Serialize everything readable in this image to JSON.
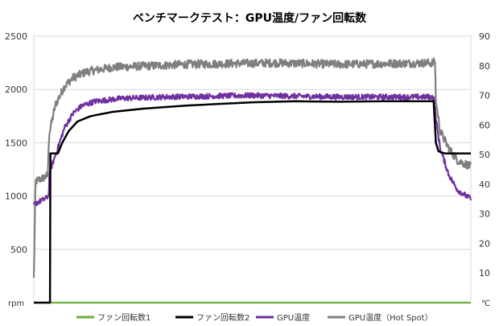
{
  "chart_data": {
    "type": "line",
    "title": "ベンチマークテスト：GPU温度/ファン回転数",
    "y_left_unit": "rpm",
    "y_right_unit": "℃",
    "y_left_ticks": [
      0,
      500,
      1000,
      1500,
      2000,
      2500
    ],
    "y_left_tick_labels": [
      "",
      "500",
      "1000",
      "1500",
      "2000",
      "2500"
    ],
    "y_right_ticks": [
      0,
      10,
      20,
      30,
      40,
      50,
      60,
      70,
      80,
      90
    ],
    "y_right_tick_labels": [
      "",
      "10",
      "20",
      "30",
      "40",
      "50",
      "60",
      "70",
      "80",
      "90"
    ],
    "ylim_left": [
      0,
      2500
    ],
    "ylim_right": [
      0,
      90
    ],
    "x_range": [
      0,
      100
    ],
    "grid": true,
    "legend_position": "bottom",
    "series": [
      {
        "name": "ファン回転数1",
        "axis": "left",
        "color": "#6aaf3b",
        "noise": 0,
        "points": [
          [
            0,
            0
          ],
          [
            100,
            0
          ]
        ]
      },
      {
        "name": "ファン回転数2",
        "axis": "left",
        "color": "#000000",
        "noise": 0,
        "points": [
          [
            0,
            0
          ],
          [
            3.7,
            0
          ],
          [
            3.8,
            1400
          ],
          [
            5.5,
            1400
          ],
          [
            6.5,
            1500
          ],
          [
            8,
            1610
          ],
          [
            10,
            1700
          ],
          [
            13,
            1750
          ],
          [
            18,
            1790
          ],
          [
            25,
            1820
          ],
          [
            35,
            1850
          ],
          [
            50,
            1880
          ],
          [
            60,
            1890
          ],
          [
            70,
            1885
          ],
          [
            80,
            1890
          ],
          [
            91.5,
            1890
          ],
          [
            92,
            1500
          ],
          [
            92.6,
            1420
          ],
          [
            94,
            1400
          ],
          [
            100,
            1400
          ]
        ]
      },
      {
        "name": "GPU温度",
        "axis": "right",
        "color": "#7030a0",
        "noise": 0.45,
        "points": [
          [
            0,
            33
          ],
          [
            1,
            34
          ],
          [
            2.5,
            35
          ],
          [
            3.4,
            36
          ],
          [
            3.6,
            44
          ],
          [
            5,
            50
          ],
          [
            7,
            59
          ],
          [
            9,
            64
          ],
          [
            11,
            66.5
          ],
          [
            14,
            68
          ],
          [
            20,
            69
          ],
          [
            30,
            69.5
          ],
          [
            50,
            70
          ],
          [
            70,
            69.5
          ],
          [
            91.5,
            69.5
          ],
          [
            92,
            62
          ],
          [
            93,
            52
          ],
          [
            95,
            43
          ],
          [
            97,
            38
          ],
          [
            100,
            35
          ]
        ]
      },
      {
        "name": "GPU温度（Hot Spot）",
        "axis": "right",
        "color": "#7f7f7f",
        "noise": 0.7,
        "points": [
          [
            0,
            8
          ],
          [
            0.4,
            41
          ],
          [
            2,
            42
          ],
          [
            3.2,
            43
          ],
          [
            3.5,
            57
          ],
          [
            5,
            67
          ],
          [
            7,
            73
          ],
          [
            9,
            76
          ],
          [
            12,
            78
          ],
          [
            18,
            79.5
          ],
          [
            35,
            80.5
          ],
          [
            55,
            81
          ],
          [
            70,
            80.5
          ],
          [
            91.5,
            81
          ],
          [
            91.8,
            82
          ],
          [
            92,
            68
          ],
          [
            93,
            58
          ],
          [
            95,
            52
          ],
          [
            97,
            48
          ],
          [
            100,
            46
          ]
        ]
      }
    ]
  }
}
